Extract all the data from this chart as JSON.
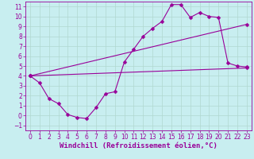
{
  "xlabel": "Windchill (Refroidissement éolien,°C)",
  "background_color": "#c8eef0",
  "line_color": "#990099",
  "grid_color": "#b0d8d0",
  "xlim": [
    -0.5,
    23.5
  ],
  "ylim": [
    -1.5,
    11.5
  ],
  "xticks": [
    0,
    1,
    2,
    3,
    4,
    5,
    6,
    7,
    8,
    9,
    10,
    11,
    12,
    13,
    14,
    15,
    16,
    17,
    18,
    19,
    20,
    21,
    22,
    23
  ],
  "yticks": [
    -1,
    0,
    1,
    2,
    3,
    4,
    5,
    6,
    7,
    8,
    9,
    10,
    11
  ],
  "line1_x": [
    0,
    1,
    2,
    3,
    4,
    5,
    6,
    7,
    8,
    9,
    10,
    11,
    12,
    13,
    14,
    15,
    16,
    17,
    18,
    19,
    20,
    21,
    22,
    23
  ],
  "line1_y": [
    4.0,
    3.3,
    1.7,
    1.2,
    0.1,
    -0.2,
    -0.3,
    0.8,
    2.2,
    2.4,
    5.4,
    6.7,
    8.0,
    8.8,
    9.5,
    11.2,
    11.2,
    9.9,
    10.4,
    10.0,
    9.9,
    5.3,
    5.0,
    4.9
  ],
  "line2_x": [
    0,
    23
  ],
  "line2_y": [
    4.0,
    4.8
  ],
  "line3_x": [
    0,
    23
  ],
  "line3_y": [
    4.0,
    9.2
  ],
  "markersize": 2.5,
  "linewidth": 0.8,
  "tick_fontsize": 5.5,
  "xlabel_fontsize": 6.5
}
